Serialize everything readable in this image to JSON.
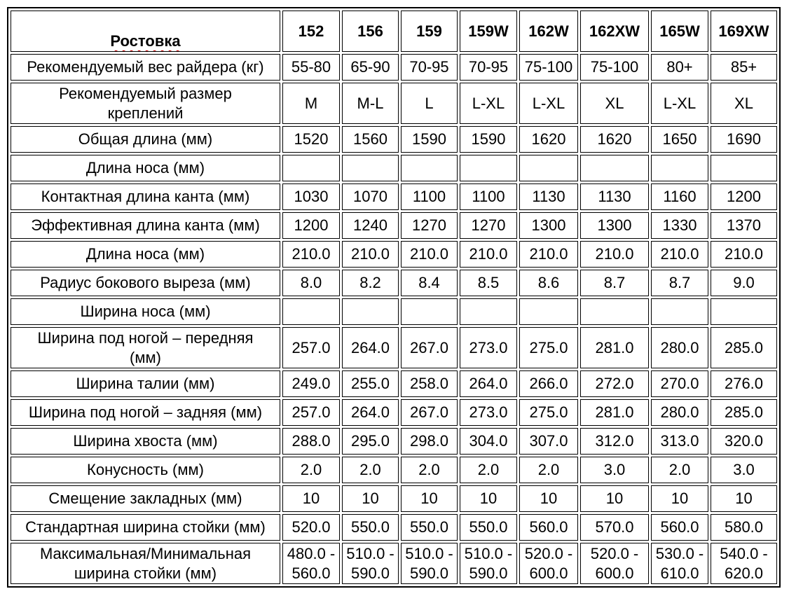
{
  "page": {
    "background_color": "#ffffff",
    "text_color": "#000000",
    "border_color": "#000000",
    "squiggle_color": "#cc0000"
  },
  "table": {
    "header": {
      "label": "Ростовка",
      "columns": [
        "152",
        "156",
        "159",
        "159W",
        "162W",
        "162XW",
        "165W",
        "169XW"
      ]
    },
    "rows": [
      {
        "label": "Рекомендуемый вес райдера (кг)",
        "values": [
          "55-80",
          "65-90",
          "70-95",
          "70-95",
          "75-100",
          "75-100",
          "80+",
          "85+"
        ]
      },
      {
        "label": "Рекомендуемый размер\nкреплений",
        "values": [
          "M",
          "M-L",
          "L",
          "L-XL",
          "L-XL",
          "XL",
          "L-XL",
          "XL"
        ]
      },
      {
        "label": "Общая длина (мм)",
        "values": [
          "1520",
          "1560",
          "1590",
          "1590",
          "1620",
          "1620",
          "1650",
          "1690"
        ]
      },
      {
        "label": "Длина носа (мм)",
        "values": [
          "",
          "",
          "",
          "",
          "",
          "",
          "",
          ""
        ]
      },
      {
        "label": "Контактная длина канта (мм)",
        "values": [
          "1030",
          "1070",
          "1100",
          "1100",
          "1130",
          "1130",
          "1160",
          "1200"
        ]
      },
      {
        "label": "Эффективная длина канта (мм)",
        "values": [
          "1200",
          "1240",
          "1270",
          "1270",
          "1300",
          "1300",
          "1330",
          "1370"
        ]
      },
      {
        "label": "Длина носа (мм)",
        "values": [
          "210.0",
          "210.0",
          "210.0",
          "210.0",
          "210.0",
          "210.0",
          "210.0",
          "210.0"
        ]
      },
      {
        "label": "Радиус бокового выреза (мм)",
        "values": [
          "8.0",
          "8.2",
          "8.4",
          "8.5",
          "8.6",
          "8.7",
          "8.7",
          "9.0"
        ]
      },
      {
        "label": "Ширина носа (мм)",
        "values": [
          "",
          "",
          "",
          "",
          "",
          "",
          "",
          ""
        ]
      },
      {
        "label": "Ширина под ногой – передняя\n(мм)",
        "values": [
          "257.0",
          "264.0",
          "267.0",
          "273.0",
          "275.0",
          "281.0",
          "280.0",
          "285.0"
        ]
      },
      {
        "label": "Ширина талии (мм)",
        "values": [
          "249.0",
          "255.0",
          "258.0",
          "264.0",
          "266.0",
          "272.0",
          "270.0",
          "276.0"
        ]
      },
      {
        "label": "Ширина под ногой – задняя (мм)",
        "values": [
          "257.0",
          "264.0",
          "267.0",
          "273.0",
          "275.0",
          "281.0",
          "280.0",
          "285.0"
        ]
      },
      {
        "label": "Ширина хвоста (мм)",
        "values": [
          "288.0",
          "295.0",
          "298.0",
          "304.0",
          "307.0",
          "312.0",
          "313.0",
          "320.0"
        ]
      },
      {
        "label": "Конусность (мм)",
        "values": [
          "2.0",
          "2.0",
          "2.0",
          "2.0",
          "2.0",
          "3.0",
          "2.0",
          "3.0"
        ]
      },
      {
        "label": "Смещение закладных (мм)",
        "values": [
          "10",
          "10",
          "10",
          "10",
          "10",
          "10",
          "10",
          "10"
        ]
      },
      {
        "label": "Стандартная ширина стойки (мм)",
        "values": [
          "520.0",
          "550.0",
          "550.0",
          "550.0",
          "560.0",
          "570.0",
          "560.0",
          "580.0"
        ]
      },
      {
        "label": "Максимальная/Минимальная\nширина стойки (мм)",
        "values": [
          "480.0 -\n560.0",
          "510.0 -\n590.0",
          "510.0 -\n590.0",
          "510.0 -\n590.0",
          "520.0 -\n600.0",
          "520.0 -\n600.0",
          "530.0 -\n610.0",
          "540.0 -\n620.0"
        ]
      }
    ]
  }
}
